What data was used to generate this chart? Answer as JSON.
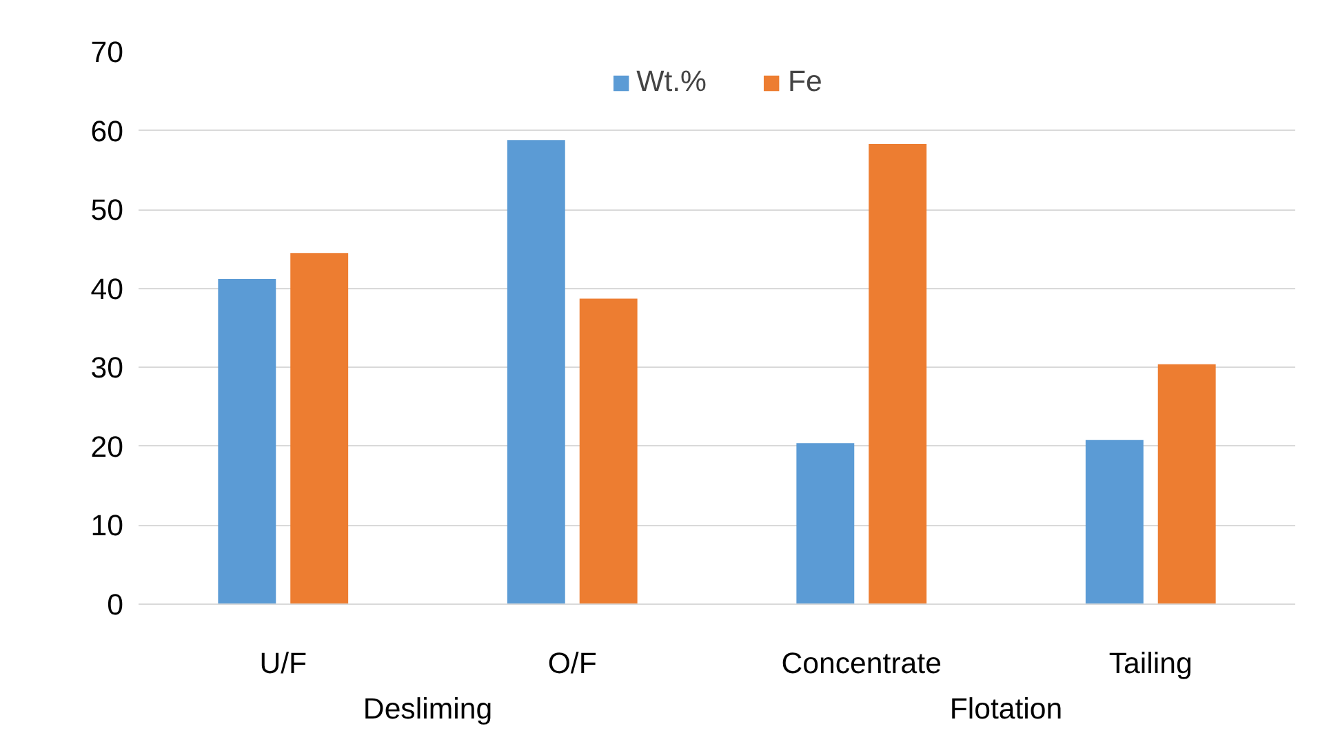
{
  "chart_data": {
    "type": "bar",
    "categories": [
      "U/F",
      "O/F",
      "Concentrate",
      "Tailing"
    ],
    "series": [
      {
        "name": "Wt.%",
        "color": "#5b9bd5",
        "values": [
          41.2,
          58.8,
          20.4,
          20.8
        ]
      },
      {
        "name": "Fe",
        "color": "#ed7d31",
        "values": [
          44.5,
          38.7,
          58.3,
          30.4
        ]
      }
    ],
    "ylim": [
      0,
      70
    ],
    "yticks": [
      0,
      10,
      20,
      30,
      40,
      50,
      60,
      70
    ],
    "grid": "y",
    "legend": "top",
    "annotations": [
      "Desliming",
      "Flotation"
    ]
  }
}
